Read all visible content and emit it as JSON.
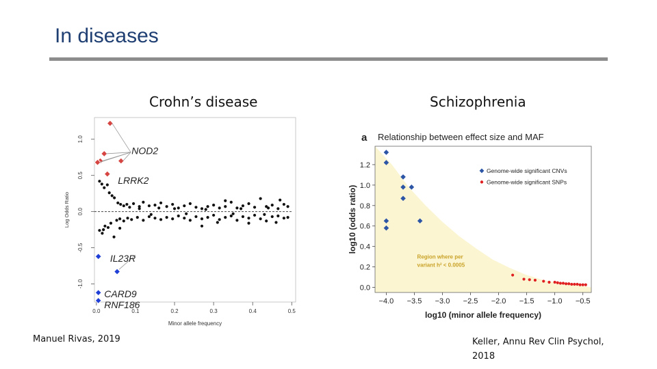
{
  "slide": {
    "title": "In diseases",
    "left_heading": "Crohn’s disease",
    "right_heading": "Schizophrenia",
    "left_citation": "Manuel Rivas, 2019",
    "right_citation_line1": "Keller, Annu Rev Clin Psychol,",
    "right_citation_line2": "2018"
  },
  "colors": {
    "title": "#1f3f73",
    "rule": "#8c8c8c",
    "red_marker": "#d64541",
    "blue_marker": "#1f3fd6",
    "cnv_marker": "#2c55a6",
    "snp_marker": "#e02020",
    "region_fill": "#fbf5d2"
  },
  "chart_data": [
    {
      "type": "scatter",
      "title": "",
      "xlabel": "Minor allele frequency",
      "ylabel": "Log Odds Ratio",
      "xlim": [
        -0.005,
        0.51
      ],
      "ylim": [
        -1.25,
        1.3
      ],
      "xticks": [
        0.0,
        0.1,
        0.2,
        0.3,
        0.4,
        0.5
      ],
      "xtick_labels": [
        "0.0",
        "0.1",
        "0.2",
        "0.3",
        "0.4",
        "0.5"
      ],
      "yticks": [
        -1.0,
        -0.5,
        0.0,
        0.5,
        1.0
      ],
      "ytick_labels": [
        "-1.0",
        "-0.5",
        "0.0",
        "0.5",
        "1.0"
      ],
      "reference_line_y": 0.0,
      "highlighted": [
        {
          "gene": "NOD2",
          "points": [
            [
              0.035,
              1.22
            ],
            [
              0.02,
              0.8
            ],
            [
              0.01,
              0.7
            ],
            [
              0.003,
              0.68
            ],
            [
              0.063,
              0.7
            ]
          ]
        },
        {
          "gene": "LRRK2",
          "points": [
            [
              0.028,
              0.52
            ]
          ]
        },
        {
          "gene": "IL23R",
          "points": [
            [
              0.005,
              -0.62
            ]
          ]
        },
        {
          "gene": "CARD9",
          "points": [
            [
              0.053,
              -0.83
            ],
            [
              0.005,
              -1.12
            ]
          ]
        },
        {
          "gene": "RNF186",
          "points": [
            [
              0.005,
              -1.23
            ]
          ]
        }
      ],
      "annotations": [
        "NOD2",
        "LRRK2",
        "IL23R",
        "CARD9",
        "RNF186"
      ],
      "background_points": [
        [
          0.008,
          0.42
        ],
        [
          0.014,
          0.38
        ],
        [
          0.02,
          0.33
        ],
        [
          0.028,
          0.37
        ],
        [
          0.033,
          0.26
        ],
        [
          0.04,
          0.22
        ],
        [
          0.046,
          0.19
        ],
        [
          0.055,
          0.12
        ],
        [
          0.062,
          0.1
        ],
        [
          0.07,
          0.08
        ],
        [
          0.078,
          0.1
        ],
        [
          0.085,
          0.06
        ],
        [
          0.095,
          0.11
        ],
        [
          0.11,
          0.07
        ],
        [
          0.12,
          0.13
        ],
        [
          0.135,
          0.08
        ],
        [
          0.15,
          0.09
        ],
        [
          0.165,
          0.12
        ],
        [
          0.18,
          0.07
        ],
        [
          0.195,
          0.1
        ],
        [
          0.21,
          0.05
        ],
        [
          0.225,
          0.08
        ],
        [
          0.24,
          0.11
        ],
        [
          0.255,
          0.06
        ],
        [
          0.27,
          0.04
        ],
        [
          0.285,
          0.07
        ],
        [
          0.3,
          0.09
        ],
        [
          0.315,
          0.05
        ],
        [
          0.33,
          0.07
        ],
        [
          0.345,
          0.13
        ],
        [
          0.36,
          0.05
        ],
        [
          0.375,
          0.08
        ],
        [
          0.39,
          0.11
        ],
        [
          0.405,
          0.06
        ],
        [
          0.42,
          0.18
        ],
        [
          0.435,
          0.07
        ],
        [
          0.45,
          0.09
        ],
        [
          0.465,
          0.04
        ],
        [
          0.48,
          0.1
        ],
        [
          0.49,
          0.07
        ],
        [
          0.11,
          0.04
        ],
        [
          0.2,
          0.04
        ],
        [
          0.28,
          0.03
        ],
        [
          0.37,
          0.04
        ],
        [
          0.44,
          0.05
        ],
        [
          0.47,
          0.16
        ],
        [
          0.33,
          0.15
        ],
        [
          0.16,
          0.05
        ],
        [
          0.008,
          -0.26
        ],
        [
          0.015,
          -0.3
        ],
        [
          0.022,
          -0.2
        ],
        [
          0.03,
          -0.22
        ],
        [
          0.037,
          -0.16
        ],
        [
          0.045,
          -0.35
        ],
        [
          0.052,
          -0.12
        ],
        [
          0.06,
          -0.1
        ],
        [
          0.07,
          -0.13
        ],
        [
          0.08,
          -0.09
        ],
        [
          0.09,
          -0.11
        ],
        [
          0.105,
          -0.08
        ],
        [
          0.12,
          -0.12
        ],
        [
          0.135,
          -0.07
        ],
        [
          0.15,
          -0.09
        ],
        [
          0.165,
          -0.11
        ],
        [
          0.18,
          -0.08
        ],
        [
          0.195,
          -0.1
        ],
        [
          0.21,
          -0.06
        ],
        [
          0.225,
          -0.09
        ],
        [
          0.24,
          -0.12
        ],
        [
          0.255,
          -0.07
        ],
        [
          0.27,
          -0.1
        ],
        [
          0.285,
          -0.08
        ],
        [
          0.3,
          -0.05
        ],
        [
          0.315,
          -0.11
        ],
        [
          0.33,
          -0.08
        ],
        [
          0.345,
          -0.06
        ],
        [
          0.36,
          -0.12
        ],
        [
          0.375,
          -0.07
        ],
        [
          0.39,
          -0.09
        ],
        [
          0.405,
          -0.05
        ],
        [
          0.42,
          -0.1
        ],
        [
          0.435,
          -0.13
        ],
        [
          0.45,
          -0.07
        ],
        [
          0.465,
          -0.06
        ],
        [
          0.48,
          -0.09
        ],
        [
          0.49,
          -0.08
        ],
        [
          0.27,
          -0.2
        ],
        [
          0.31,
          -0.15
        ],
        [
          0.39,
          -0.16
        ],
        [
          0.46,
          -0.15
        ],
        [
          0.14,
          -0.04
        ],
        [
          0.23,
          -0.03
        ],
        [
          0.35,
          -0.03
        ],
        [
          0.43,
          -0.04
        ],
        [
          0.018,
          -0.25
        ],
        [
          0.06,
          -0.23
        ]
      ]
    },
    {
      "type": "scatter",
      "title": "Relationship between effect size and MAF",
      "panel_label": "a",
      "xlabel": "log10 (minor allele frequency)",
      "ylabel": "log10 (odds ratio)",
      "xlim": [
        -4.2,
        -0.35
      ],
      "ylim": [
        -0.05,
        1.38
      ],
      "xticks": [
        -4.0,
        -3.5,
        -3.0,
        -2.5,
        -2.0,
        -1.5,
        -1.0,
        -0.5
      ],
      "xtick_labels": [
        "−4.0",
        "−3.5",
        "−3.0",
        "−2.5",
        "−2.0",
        "−1.5",
        "−1.0",
        "−0.5"
      ],
      "yticks": [
        0.0,
        0.2,
        0.4,
        0.6,
        0.8,
        1.0,
        1.2
      ],
      "ytick_labels": [
        "0.0",
        "0.2",
        "0.4",
        "0.6",
        "0.8",
        "1.0",
        "1.2"
      ],
      "region_label_line1": "Region where per",
      "region_label_line2": "variant h² < 0.0005",
      "region_curve": [
        [
          -4.2,
          1.38
        ],
        [
          -3.9,
          1.2
        ],
        [
          -3.6,
          0.98
        ],
        [
          -3.3,
          0.8
        ],
        [
          -3.0,
          0.64
        ],
        [
          -2.7,
          0.5
        ],
        [
          -2.4,
          0.38
        ],
        [
          -2.1,
          0.27
        ],
        [
          -1.8,
          0.19
        ],
        [
          -1.5,
          0.12
        ],
        [
          -1.2,
          0.07
        ],
        [
          -0.9,
          0.04
        ],
        [
          -0.6,
          0.02
        ],
        [
          -0.35,
          0.0
        ]
      ],
      "series": [
        {
          "name": "Genome-wide significant CNVs",
          "points": [
            [
              -4.0,
              1.32
            ],
            [
              -4.0,
              1.22
            ],
            [
              -3.7,
              1.08
            ],
            [
              -3.7,
              0.98
            ],
            [
              -3.55,
              0.98
            ],
            [
              -3.7,
              0.87
            ],
            [
              -4.0,
              0.65
            ],
            [
              -3.4,
              0.65
            ],
            [
              -4.0,
              0.58
            ]
          ]
        },
        {
          "name": "Genome-wide significant SNPs",
          "points": [
            [
              -1.75,
              0.12
            ],
            [
              -1.55,
              0.08
            ],
            [
              -1.45,
              0.075
            ],
            [
              -1.35,
              0.07
            ],
            [
              -1.2,
              0.06
            ],
            [
              -1.1,
              0.05
            ],
            [
              -1.0,
              0.05
            ],
            [
              -0.95,
              0.045
            ],
            [
              -0.9,
              0.04
            ],
            [
              -0.85,
              0.04
            ],
            [
              -0.8,
              0.035
            ],
            [
              -0.75,
              0.035
            ],
            [
              -0.7,
              0.03
            ],
            [
              -0.65,
              0.03
            ],
            [
              -0.6,
              0.03
            ],
            [
              -0.55,
              0.025
            ],
            [
              -0.5,
              0.025
            ],
            [
              -0.45,
              0.025
            ]
          ]
        }
      ],
      "legend_position": "top-right"
    }
  ]
}
